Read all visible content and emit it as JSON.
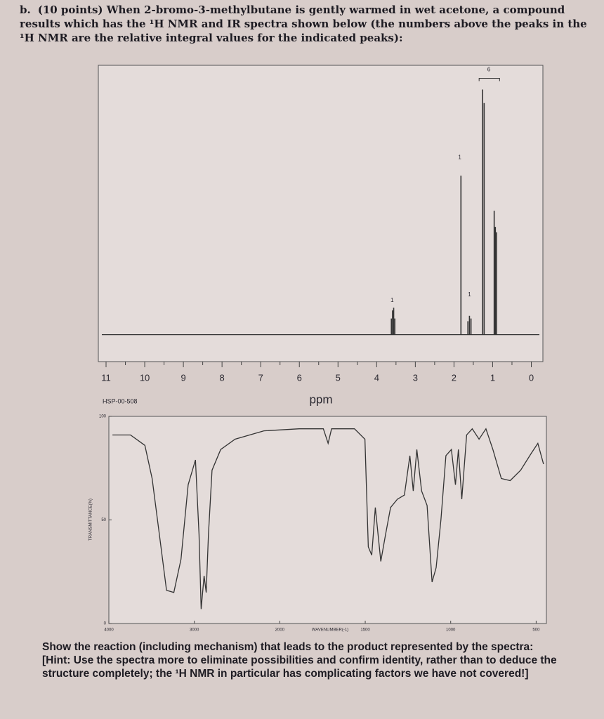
{
  "question": {
    "label": "b.",
    "text": "(10 points) When 2-bromo-3-methylbutane is gently warmed in wet acetone, a compound results which has the ¹H NMR and IR spectra shown below (the numbers above the peaks in the ¹H NMR are the relative integral values for the indicated peaks):"
  },
  "nmr": {
    "type": "stick",
    "xlabel": "ppm",
    "xlim": [
      11.2,
      -0.3
    ],
    "xticks": [
      11,
      10,
      9,
      8,
      7,
      6,
      5,
      4,
      3,
      2,
      1,
      0
    ],
    "ylim": [
      -10,
      100
    ],
    "x": [
      3.62,
      3.59,
      3.56,
      3.53,
      1.82,
      1.64,
      1.6,
      1.56,
      1.26,
      1.22,
      0.96,
      0.93,
      0.9
    ],
    "values": [
      6,
      9,
      10,
      6,
      59,
      5,
      7,
      6,
      91,
      86,
      46,
      40,
      38
    ],
    "integrals": {
      "x": [
        3.6,
        1.85,
        1.6,
        1.1
      ],
      "values": [
        1,
        1,
        1,
        6
      ]
    }
  },
  "ir": {
    "type": "line",
    "code": "HSP-00-508",
    "ylabel": "TRANSMITTANCE(%)",
    "xlabel": "WAVENUMBER(-1)",
    "xlim": [
      4000,
      440
    ],
    "x_break": 2000,
    "ylim": [
      0,
      100
    ],
    "xticks": [
      4000,
      3000,
      2000,
      1500,
      1000,
      500
    ],
    "yticks": [
      100,
      50,
      0
    ],
    "x": [
      3958,
      3747,
      3578,
      3494,
      3409,
      3325,
      3240,
      3156,
      3072,
      2987,
      2945,
      2920,
      2886,
      2861,
      2835,
      2793,
      2692,
      2523,
      2186,
      1887,
      1745,
      1717,
      1697,
      1563,
      1502,
      1482,
      1462,
      1441,
      1409,
      1381,
      1352,
      1312,
      1271,
      1239,
      1219,
      1198,
      1170,
      1138,
      1109,
      1085,
      1057,
      1028,
      996,
      972,
      955,
      935,
      907,
      874,
      834,
      794,
      753,
      704,
      652,
      591,
      530,
      490,
      457
    ],
    "values": [
      91,
      91,
      86,
      70,
      43,
      16,
      15,
      31,
      67,
      79,
      43,
      7,
      23,
      15,
      43,
      74,
      84,
      89,
      93,
      94,
      94,
      87,
      94,
      94,
      89,
      37,
      33,
      56,
      30,
      43,
      56,
      60,
      62,
      81,
      64,
      84,
      64,
      57,
      20,
      27,
      50,
      81,
      84,
      67,
      84,
      60,
      91,
      94,
      89,
      94,
      84,
      70,
      69,
      74,
      82,
      87,
      77
    ]
  },
  "footer": {
    "prompt": "Show the reaction (including mechanism) that leads to the product represented by the spectra:",
    "hint": "[Hint: Use the spectra more to eliminate possibilities and confirm identity, rather than to deduce the structure completely; the ¹H NMR in particular has complicating factors we have not covered!]"
  }
}
